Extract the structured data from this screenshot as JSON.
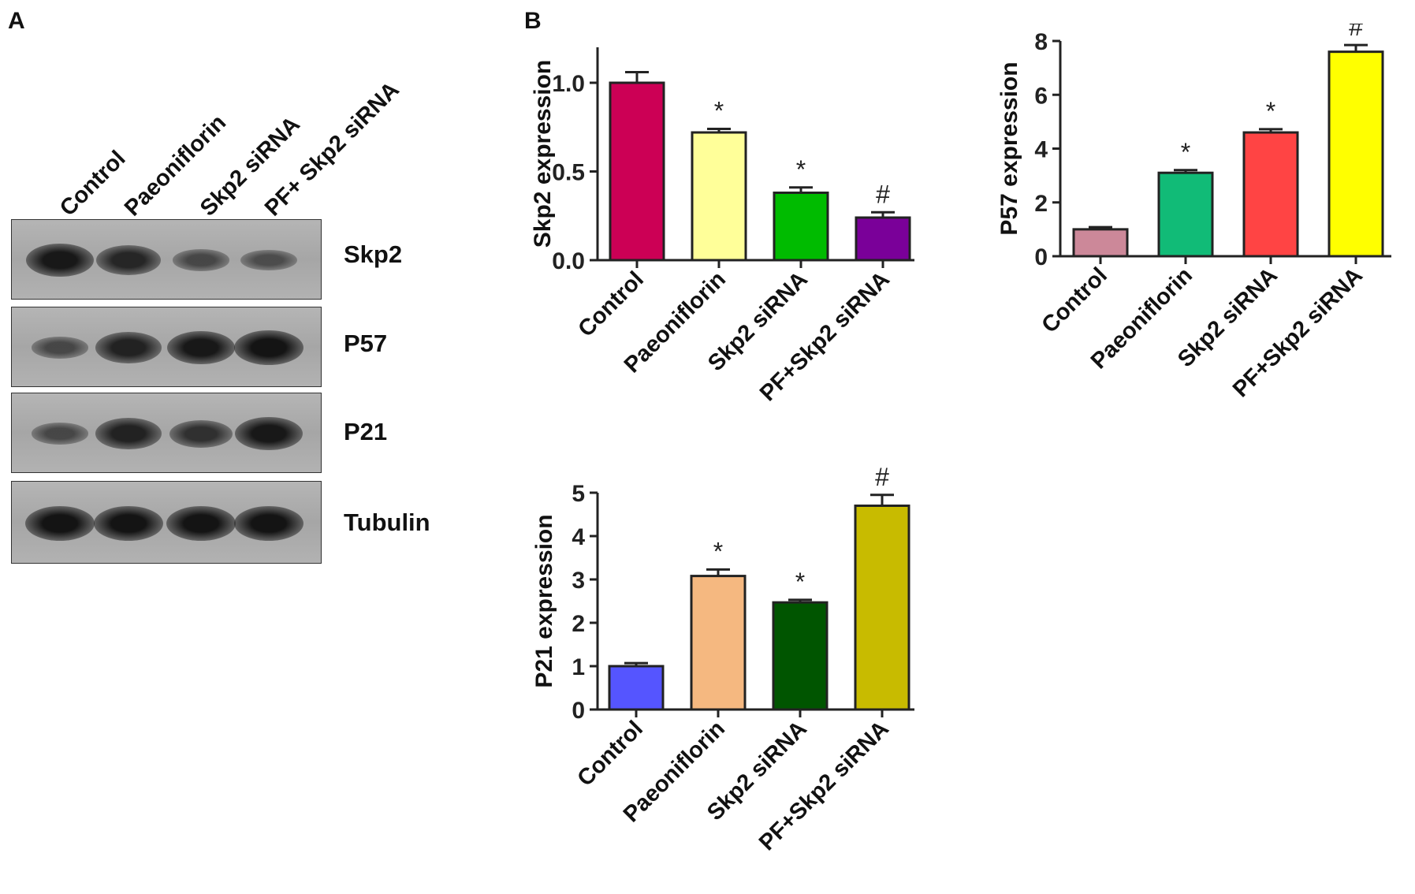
{
  "panel_a": {
    "letter": "A",
    "lane_labels": [
      "Control",
      "Paeoniflorin",
      "Skp2 siRNA",
      "PF+ Skp2 siRNA"
    ],
    "blots": [
      {
        "label": "Skp2",
        "intensity": [
          0.95,
          0.8,
          0.45,
          0.4
        ]
      },
      {
        "label": "P57",
        "intensity": [
          0.45,
          0.85,
          0.95,
          1.0
        ]
      },
      {
        "label": "P21",
        "intensity": [
          0.45,
          0.85,
          0.7,
          0.95
        ]
      },
      {
        "label": "Tubulin",
        "intensity": [
          1.0,
          1.0,
          1.0,
          1.0
        ]
      }
    ]
  },
  "panel_b": {
    "letter": "B"
  },
  "chart_data": [
    {
      "type": "bar",
      "categories": [
        "Control",
        "Paeoniflorin",
        "Skp2 siRNA",
        "PF+Skp2 siRNA"
      ],
      "values": [
        1.0,
        0.72,
        0.38,
        0.24
      ],
      "errors": [
        0.06,
        0.02,
        0.03,
        0.03
      ],
      "annotations": [
        "",
        "*",
        "*",
        "#"
      ],
      "colors": [
        "#cc0055",
        "#ffff99",
        "#00bb00",
        "#7a0099"
      ],
      "ylabel": "Skp2  expression",
      "ylim": [
        0,
        1.2
      ],
      "yticks": [
        0.0,
        0.5,
        1.0
      ],
      "ytick_labels": [
        "0.0",
        "0.5",
        "1.0"
      ]
    },
    {
      "type": "bar",
      "categories": [
        "Control",
        "Paeoniflorin",
        "Skp2 siRNA",
        "PF+Skp2 siRNA"
      ],
      "values": [
        1.0,
        3.1,
        4.6,
        7.6
      ],
      "errors": [
        0.08,
        0.1,
        0.12,
        0.25
      ],
      "annotations": [
        "",
        "*",
        "*",
        "#"
      ],
      "colors": [
        "#cc8899",
        "#11bb77",
        "#ff4444",
        "#ffff00"
      ],
      "ylabel": "P57 expression",
      "ylim": [
        0,
        8
      ],
      "yticks": [
        0,
        2,
        4,
        6,
        8
      ],
      "ytick_labels": [
        "0",
        "2",
        "4",
        "6",
        "8"
      ]
    },
    {
      "type": "bar",
      "categories": [
        "Control",
        "Paeoniflorin",
        "Skp2 siRNA",
        "PF+Skp2 siRNA"
      ],
      "values": [
        1.0,
        3.08,
        2.47,
        4.7
      ],
      "errors": [
        0.07,
        0.15,
        0.06,
        0.25
      ],
      "annotations": [
        "",
        "*",
        "*",
        "#"
      ],
      "colors": [
        "#5555ff",
        "#f5b880",
        "#005500",
        "#c8bb00"
      ],
      "ylabel": "P21  expression",
      "ylim": [
        0,
        5
      ],
      "yticks": [
        0,
        1,
        2,
        3,
        4,
        5
      ],
      "ytick_labels": [
        "0",
        "1",
        "2",
        "3",
        "4",
        "5"
      ]
    }
  ]
}
